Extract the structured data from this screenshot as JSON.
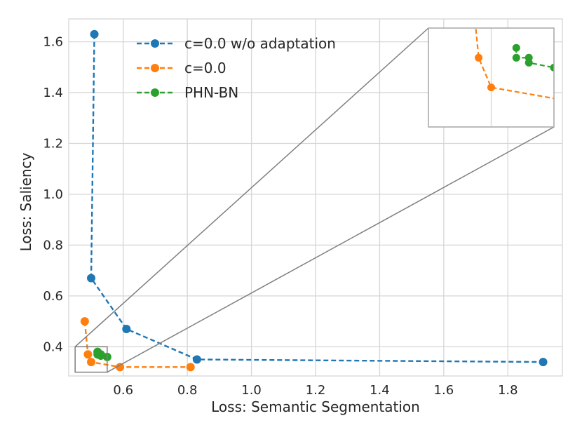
{
  "chart_data": {
    "type": "line",
    "title": "",
    "xlabel": "Loss: Semantic Segmentation",
    "ylabel": "Loss: Saliency",
    "xlim": [
      0.43,
      1.97
    ],
    "ylim": [
      0.285,
      1.69
    ],
    "xticks": [
      0.6,
      0.8,
      1.0,
      1.2,
      1.4,
      1.6,
      1.8
    ],
    "xtick_labels": [
      "0.6",
      "0.8",
      "1.0",
      "1.2",
      "1.4",
      "1.6",
      "1.8"
    ],
    "yticks": [
      0.4,
      0.6,
      0.8,
      1.0,
      1.2,
      1.4,
      1.6
    ],
    "ytick_labels": [
      "0.4",
      "0.6",
      "0.8",
      "1.0",
      "1.2",
      "1.4",
      "1.6"
    ],
    "grid": true,
    "legend_position": "top-left",
    "series": [
      {
        "name": "c=0.0 w/o adaptation",
        "color": "#1f77b4",
        "linestyle": "dashed",
        "x": [
          0.51,
          0.5,
          0.61,
          0.83,
          1.91
        ],
        "y": [
          1.63,
          0.67,
          0.47,
          0.35,
          0.34
        ]
      },
      {
        "name": "c=0.0",
        "color": "#ff7f0e",
        "linestyle": "dashed",
        "x": [
          0.48,
          0.49,
          0.5,
          0.59,
          0.81
        ],
        "y": [
          0.5,
          0.37,
          0.34,
          0.32,
          0.32
        ]
      },
      {
        "name": "PHN-BN",
        "color": "#2ca02c",
        "linestyle": "dashed",
        "x": [
          0.52,
          0.52,
          0.53,
          0.53,
          0.55
        ],
        "y": [
          0.38,
          0.37,
          0.37,
          0.365,
          0.36
        ]
      }
    ],
    "inset": {
      "type": "zoom",
      "xlim": [
        0.45,
        0.55
      ],
      "ylim": [
        0.3,
        0.4
      ],
      "location": "top-right"
    }
  }
}
